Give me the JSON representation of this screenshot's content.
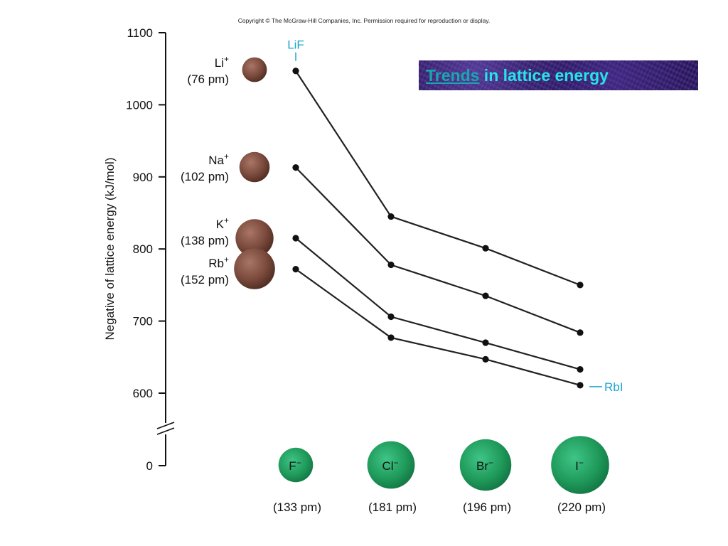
{
  "copyright": "Copyright © The McGraw-Hill Companies, Inc. Permission required for reproduction or display.",
  "banner": {
    "link_text": "Trends",
    "rest_text": " in lattice energy",
    "background": "#2a1660",
    "link_color": "#1aa6ae",
    "text_color": "#26e4ea"
  },
  "colors": {
    "line": "#222222",
    "cation": "#7a4a3c",
    "anion": "#1f9a5a",
    "annotation": "#1aa6d0"
  },
  "chart_data": {
    "type": "line",
    "ylabel": "Negative of lattice energy (kJ/mol)",
    "xlabel": "",
    "y_ticks": [
      "1100",
      "1000",
      "900",
      "800",
      "700",
      "600",
      "0"
    ],
    "ylim": [
      600,
      1100
    ],
    "y_axis_break": true,
    "grid": false,
    "categories": [
      {
        "ion": "F",
        "charge": "−",
        "radius": "(133 pm)",
        "radius_pm": 133
      },
      {
        "ion": "Cl",
        "charge": "−",
        "radius": "(181 pm)",
        "radius_pm": 181
      },
      {
        "ion": "Br",
        "charge": "−",
        "radius": "(196 pm)",
        "radius_pm": 196
      },
      {
        "ion": "I",
        "charge": "−",
        "radius": "(220 pm)",
        "radius_pm": 220
      }
    ],
    "series": [
      {
        "ion": "Li",
        "charge": "+",
        "radius": "(76 pm)",
        "radius_pm": 76,
        "values": [
          1047,
          845,
          801,
          750
        ]
      },
      {
        "ion": "Na",
        "charge": "+",
        "radius": "(102 pm)",
        "radius_pm": 102,
        "values": [
          913,
          778,
          735,
          684
        ]
      },
      {
        "ion": "K",
        "charge": "+",
        "radius": "(138 pm)",
        "radius_pm": 138,
        "values": [
          815,
          706,
          670,
          633
        ]
      },
      {
        "ion": "Rb",
        "charge": "+",
        "radius": "(152 pm)",
        "radius_pm": 152,
        "values": [
          772,
          677,
          647,
          611
        ]
      }
    ],
    "annotations": [
      {
        "text": "LiF",
        "series": 0,
        "category": 0
      },
      {
        "text": "RbI",
        "series": 3,
        "category": 3
      }
    ]
  }
}
